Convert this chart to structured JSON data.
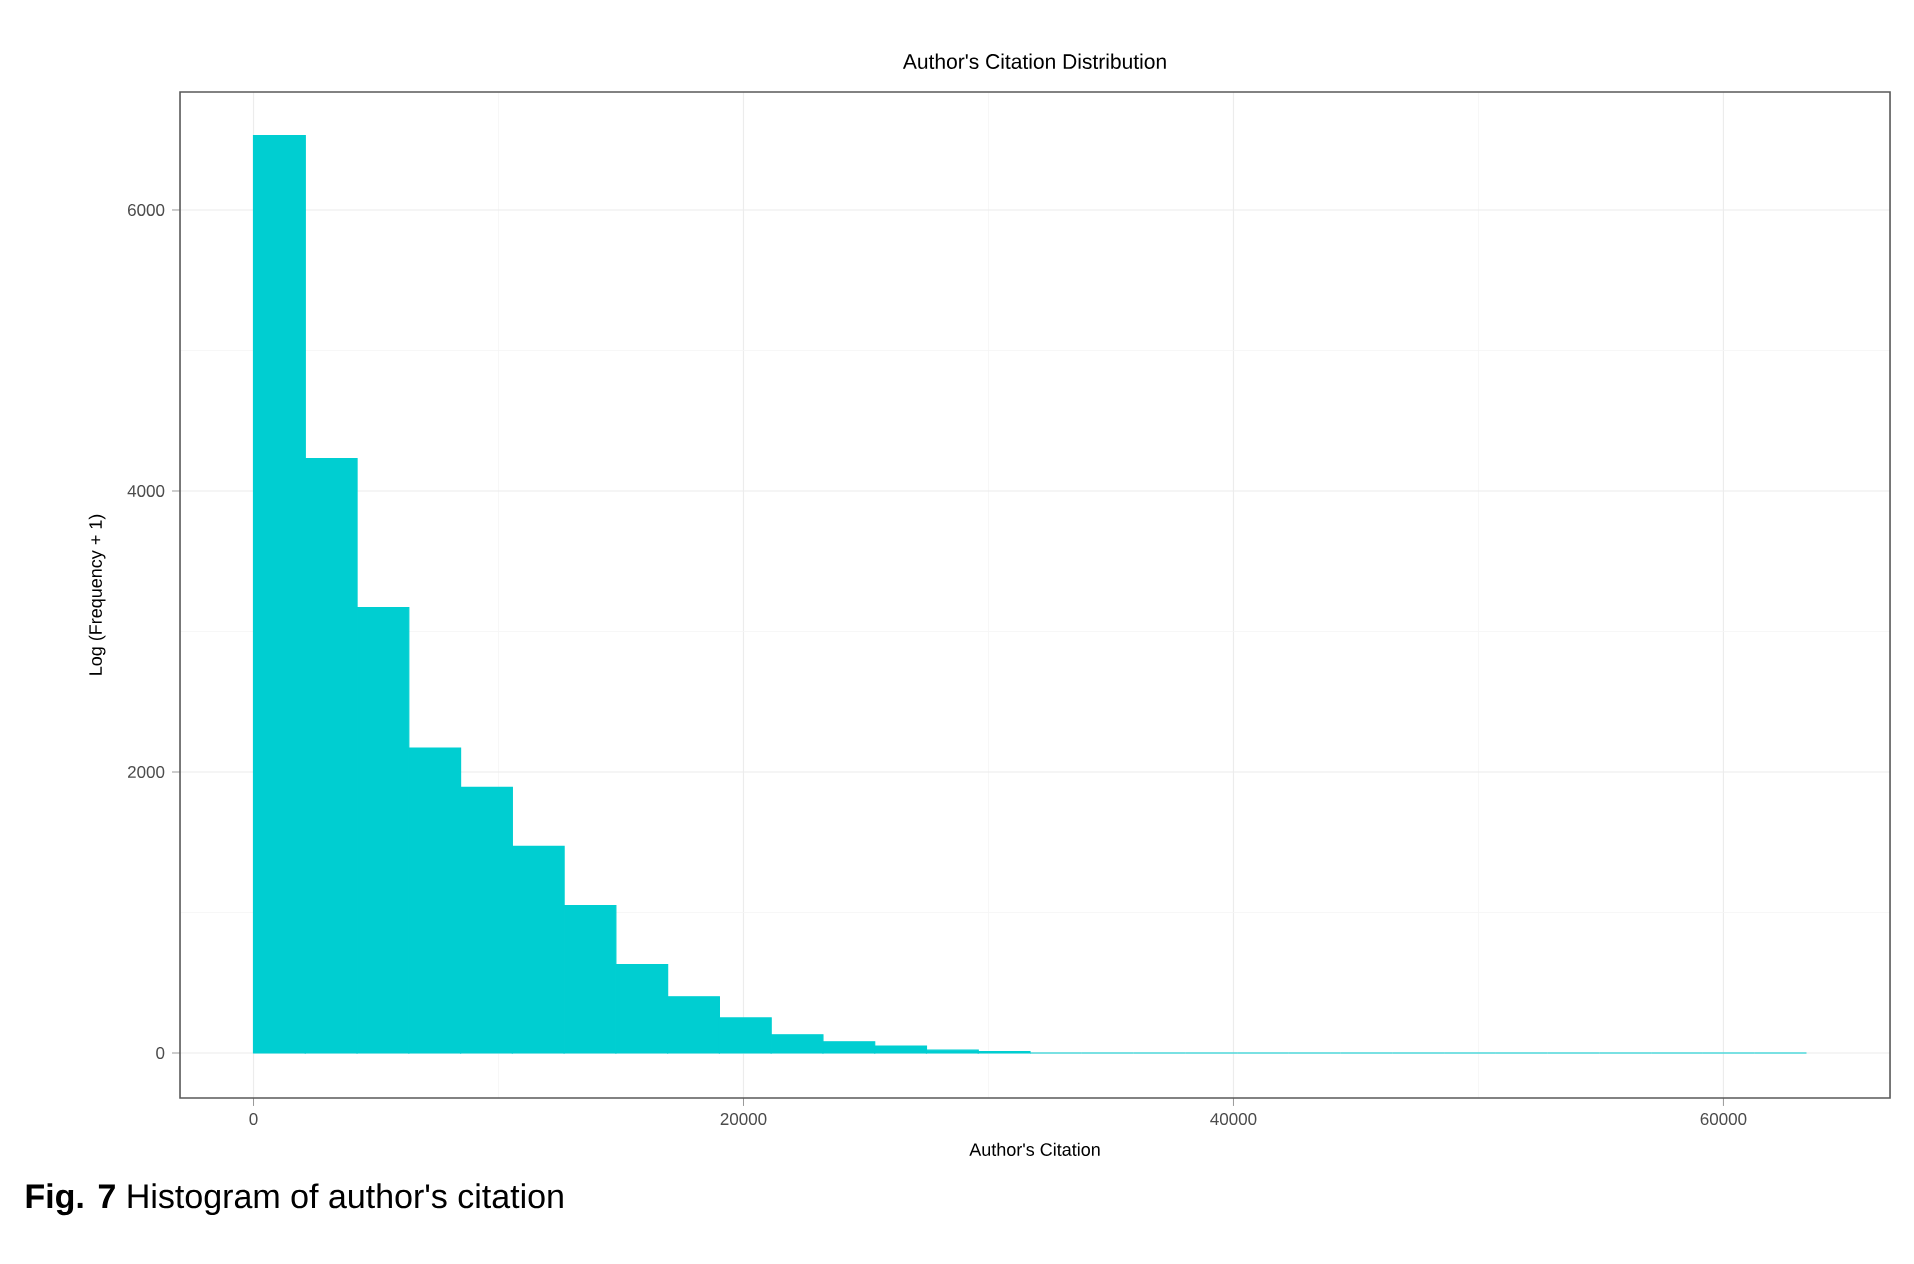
{
  "chart_data": {
    "type": "histogram",
    "title": "Author's Citation Distribution",
    "xlabel": "Author's Citation",
    "ylabel": "Log (Frequency + 1)",
    "bins": [
      0,
      2113,
      4226,
      6339,
      8452,
      10565,
      12678,
      14791,
      16904,
      19017,
      21130,
      23243,
      25356,
      27469,
      29582,
      31695,
      33808,
      35921,
      38034,
      40147,
      42260,
      44373,
      46486,
      48599,
      50712,
      52825,
      54938,
      57051,
      59164,
      61277,
      63390
    ],
    "values": [
      6530,
      4230,
      3170,
      2170,
      1890,
      1470,
      1050,
      630,
      400,
      250,
      130,
      80,
      50,
      20,
      10,
      0,
      0,
      0,
      0,
      0,
      0,
      0,
      0,
      0,
      0,
      0,
      0,
      0,
      0,
      0
    ],
    "color": "#00ced1",
    "xlim": [
      -3000,
      66800
    ],
    "ylim": [
      -320,
      6840
    ],
    "xticks": [
      0,
      20000,
      40000,
      60000
    ],
    "yticks": [
      0,
      2000,
      4000,
      6000
    ],
    "grid": true,
    "annotations": [
      "**Fig. 7** Histogram of author's citation"
    ]
  }
}
